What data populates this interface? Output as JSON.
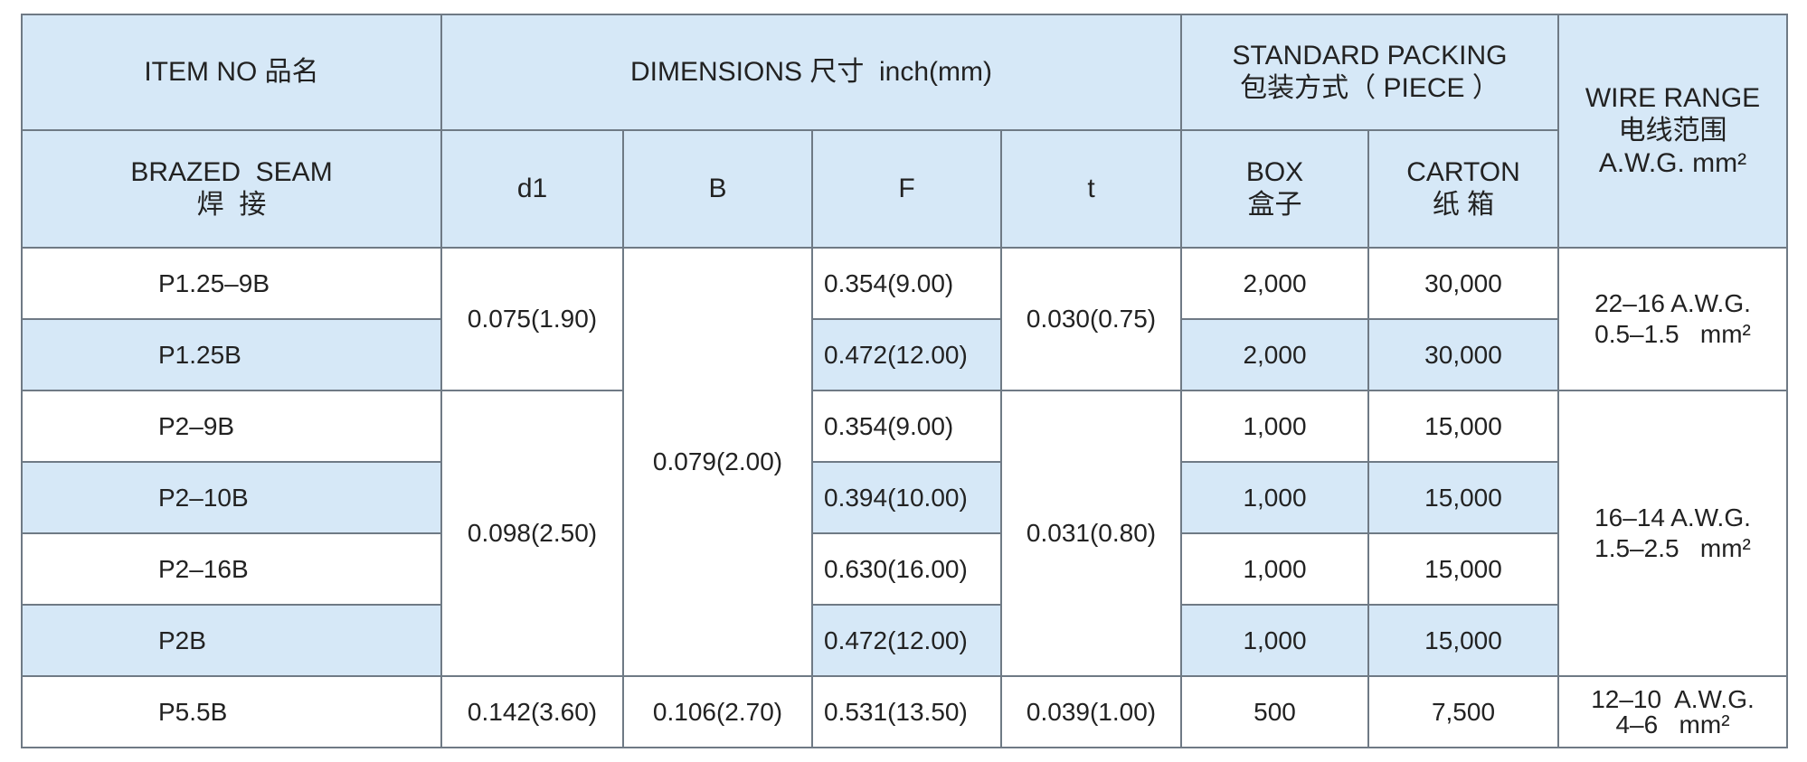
{
  "header": {
    "item_no": "ITEM NO 品名",
    "dimensions": "DIMENSIONS 尺寸  inch(mm)",
    "packing": [
      "STANDARD PACKING",
      "包装方式（ PIECE ）"
    ],
    "wire_range": [
      "WIRE RANGE",
      "电线范围",
      "A.W.G. mm²"
    ],
    "seam": [
      "BRAZED  SEAM",
      "焊  接"
    ],
    "d1": "d1",
    "b": "B",
    "f": "F",
    "t": "t",
    "box": [
      "BOX",
      "盒子"
    ],
    "carton": [
      "CARTON",
      "纸 箱"
    ]
  },
  "rows": [
    {
      "item": "P1.25–9B",
      "d1": "0.075(1.90)",
      "b": "0.079(2.00)",
      "f": "0.354(9.00)",
      "t": "0.030(0.75)",
      "box": "2,000",
      "carton": "30,000",
      "wire": [
        "22–16 A.W.G.",
        "0.5–1.5   mm²"
      ]
    },
    {
      "item": "P1.25B",
      "f": "0.472(12.00)",
      "box": "2,000",
      "carton": "30,000"
    },
    {
      "item": "P2–9B",
      "d1": "0.098(2.50)",
      "f": "0.354(9.00)",
      "t": "0.031(0.80)",
      "box": "1,000",
      "carton": "15,000",
      "wire": [
        "16–14 A.W.G.",
        "1.5–2.5   mm²"
      ]
    },
    {
      "item": "P2–10B",
      "f": "0.394(10.00)",
      "box": "1,000",
      "carton": "15,000"
    },
    {
      "item": "P2–16B",
      "f": "0.630(16.00)",
      "box": "1,000",
      "carton": "15,000"
    },
    {
      "item": "P2B",
      "f": "0.472(12.00)",
      "box": "1,000",
      "carton": "15,000"
    },
    {
      "item": "P5.5B",
      "d1": "0.142(3.60)",
      "b": "0.106(2.70)",
      "f": "0.531(13.50)",
      "t": "0.039(1.00)",
      "box": "500",
      "carton": "7,500",
      "wire": [
        "12–10  A.W.G.",
        "4–6   mm²"
      ]
    }
  ]
}
